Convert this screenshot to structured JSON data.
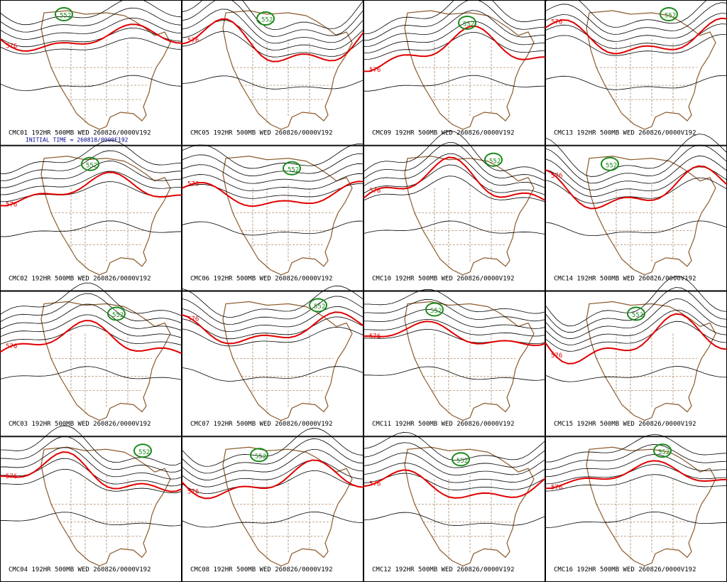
{
  "panels": [
    {
      "label": "CMC01 192HR 500MB WED 260826/0000V192",
      "contour_labels": [
        "576",
        "552"
      ]
    },
    {
      "label": "CMC02 192HR 500MB WED 260826/0000V192",
      "contour_labels": [
        "576",
        "552"
      ]
    },
    {
      "label": "CMC03 192HR 500MB WED 260826/0000V192",
      "contour_labels": [
        "576",
        "552"
      ]
    },
    {
      "label": "CMC04 192HR 500MB WED 260826/0000V192",
      "contour_labels": [
        "576",
        "552"
      ]
    },
    {
      "label": "CMC05 192HR 500MB WED 260826/0000V192",
      "contour_labels": [
        "576",
        "552"
      ]
    },
    {
      "label": "CMC06 192HR 500MB WED 260826/0000V192",
      "contour_labels": [
        "576",
        "552"
      ]
    },
    {
      "label": "CMC07 192HR 500MB WED 260826/0000V192",
      "contour_labels": [
        "576",
        "552"
      ]
    },
    {
      "label": "CMC08 192HR 500MB WED 260826/0000V192",
      "contour_labels": [
        "576",
        "552"
      ]
    },
    {
      "label": "CMC09 192HR 500MB WED 260826/0000V192",
      "contour_labels": [
        "576",
        "552"
      ]
    },
    {
      "label": "CMC10 192HR 500MB WED 260826/0000V192",
      "contour_labels": [
        "576",
        "552"
      ]
    },
    {
      "label": "CMC11 192HR 500MB WED 260826/0000V192",
      "contour_labels": [
        "576",
        "552"
      ]
    },
    {
      "label": "CMC12 192HR 500MB WED 260826/0000V192",
      "contour_labels": [
        "576",
        "552"
      ]
    },
    {
      "label": "CMC13 192HR 500MB WED 260826/0000V192",
      "contour_labels": [
        "576",
        "552"
      ]
    },
    {
      "label": "CMC14 192HR 500MB WED 260826/0000V192",
      "contour_labels": [
        "576",
        "552"
      ]
    },
    {
      "label": "CMC15 192HR 500MB WED 260826/0000V192",
      "contour_labels": [
        "576",
        "552"
      ]
    },
    {
      "label": "CMC16 192HR 500MB WED 260826/0000V192",
      "contour_labels": [
        "576",
        "552"
      ]
    }
  ],
  "initial_time": "INITIAL TIME = 260818/0000F192"
}
